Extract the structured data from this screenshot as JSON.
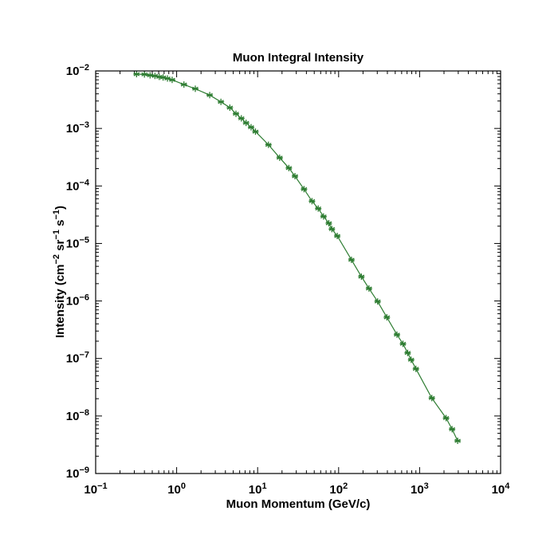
{
  "chart_data": {
    "type": "line",
    "title": "Muon Integral Intensity",
    "xlabel": "Muon Momentum (GeV/c)",
    "ylabel": "Intensity (cm^-2 sr^-1 s^-1)",
    "ylabel_parts": {
      "prefix": "Intensity (cm",
      "sup1": "−2",
      "mid1": " sr",
      "sup2": "−1",
      "mid2": " s",
      "sup3": "−1",
      "suffix": ")"
    },
    "xscale": "log",
    "yscale": "log",
    "xlim": [
      0.1,
      10000
    ],
    "ylim": [
      1e-09,
      0.01
    ],
    "grid": false,
    "marker": "asterisk",
    "line_color": "#2e7d32",
    "marker_color": "#2e7d32",
    "x_ticks": [
      {
        "base": "10",
        "exp": "−1"
      },
      {
        "base": "10",
        "exp": "0"
      },
      {
        "base": "10",
        "exp": "1"
      },
      {
        "base": "10",
        "exp": "2"
      },
      {
        "base": "10",
        "exp": "3"
      },
      {
        "base": "10",
        "exp": "4"
      }
    ],
    "y_ticks": [
      {
        "base": "10",
        "exp": "−9"
      },
      {
        "base": "10",
        "exp": "−8"
      },
      {
        "base": "10",
        "exp": "−7"
      },
      {
        "base": "10",
        "exp": "−6"
      },
      {
        "base": "10",
        "exp": "−5"
      },
      {
        "base": "10",
        "exp": "−4"
      },
      {
        "base": "10",
        "exp": "−3"
      },
      {
        "base": "10",
        "exp": "−2"
      }
    ],
    "x": [
      0.32,
      0.4,
      0.47,
      0.54,
      0.61,
      0.68,
      0.77,
      0.88,
      1.23,
      1.7,
      2.56,
      3.52,
      4.54,
      5.4,
      6.29,
      7.2,
      8.3,
      9.4,
      13.6,
      18.7,
      24.3,
      28.9,
      37.4,
      46.9,
      56.0,
      65.1,
      75.6,
      82.5,
      96.2,
      144,
      191,
      237,
      303,
      394,
      525,
      623,
      712,
      786,
      900,
      1415,
      2121,
      2517,
      2947
    ],
    "values": [
      0.0088,
      0.0087,
      0.0084,
      0.0082,
      0.0079,
      0.0077,
      0.0074,
      0.007,
      0.0058,
      0.0049,
      0.0038,
      0.0029,
      0.0023,
      0.0018,
      0.0015,
      0.00125,
      0.00105,
      0.00088,
      0.00052,
      0.00031,
      0.000205,
      0.000148,
      8.81e-05,
      5.44e-05,
      4.05e-05,
      2.95e-05,
      2.25e-05,
      1.78e-05,
      1.35e-05,
      5.2e-06,
      2.65e-06,
      1.65e-06,
      9.8e-07,
      5.2e-07,
      2.6e-07,
      1.8e-07,
      1.25e-07,
      9.5e-08,
      6.6e-08,
      2.05e-08,
      9.2e-09,
      5.9e-09,
      3.7e-09
    ]
  }
}
